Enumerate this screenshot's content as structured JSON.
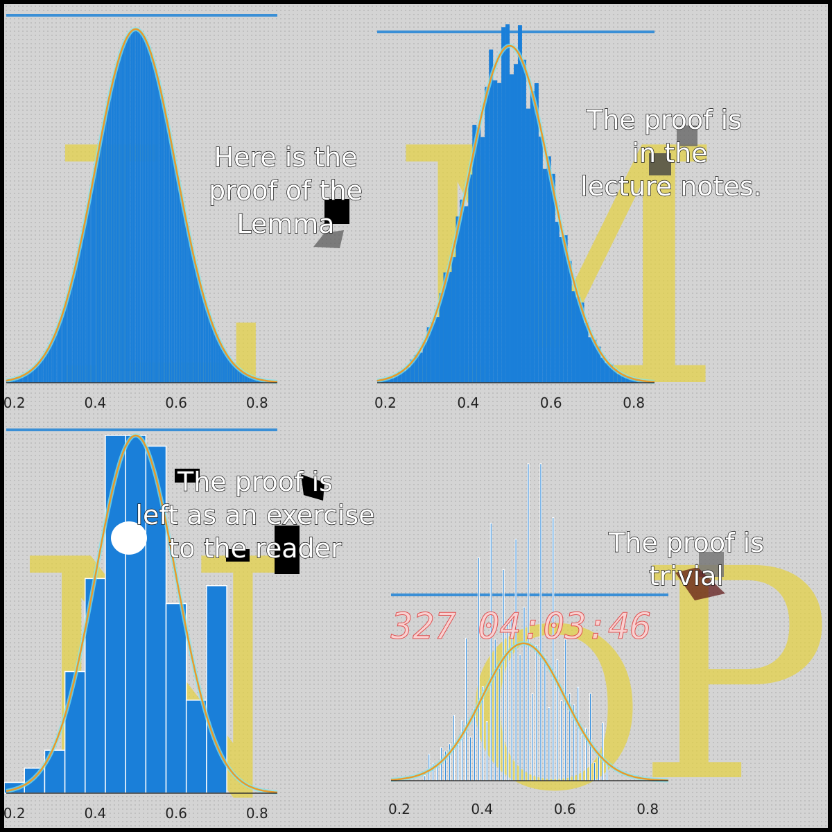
{
  "colors": {
    "bar": "#1a7fd9",
    "bar_outline": "#ffffff",
    "curve": "#e89a2a",
    "curve_glow": "#7fe7f0",
    "top_line": "#3a8fd6",
    "letters": "#e6d23a",
    "clock": "#ff6b6b"
  },
  "letters": [
    "L",
    "M",
    "N",
    "O",
    "P"
  ],
  "clock_text": "327 04:03:46",
  "chart_data": [
    {
      "type": "bar",
      "overlay": "normal-density",
      "x_ticks": [
        "0.2",
        "0.4",
        "0.6",
        "0.8"
      ],
      "xlim": [
        0.18,
        0.85
      ],
      "ylim": [
        0,
        1
      ],
      "mean": 0.5,
      "sd": 0.1,
      "bins": {
        "start": 0.18,
        "width": 0.004,
        "count": 165
      },
      "values_note": "",
      "annotation": [
        "Here is the",
        "proof of the",
        "Lemma"
      ]
    },
    {
      "type": "bar",
      "overlay": "normal-density",
      "x_ticks": [
        "0.2",
        "0.4",
        "0.6",
        "0.8"
      ],
      "xlim": [
        0.18,
        0.85
      ],
      "ylim": [
        0,
        1
      ],
      "mean": 0.5,
      "sd": 0.1,
      "bins": {
        "start": 0.18,
        "width": 0.01,
        "count": 67
      },
      "annotation": [
        "The proof is",
        "in the",
        "lecture notes."
      ]
    },
    {
      "type": "bar",
      "overlay": "normal-density",
      "x_ticks": [
        "0.2",
        "0.4",
        "0.6",
        "0.8"
      ],
      "xlim": [
        0.18,
        0.85
      ],
      "ylim": [
        0,
        1
      ],
      "mean": 0.5,
      "sd": 0.1,
      "categories": [
        0.2,
        0.25,
        0.3,
        0.35,
        0.4,
        0.45,
        0.5,
        0.55,
        0.6,
        0.65,
        0.7
      ],
      "values": [
        0.03,
        0.07,
        0.12,
        0.34,
        0.6,
        1.0,
        1.0,
        0.97,
        0.53,
        0.26,
        0.58
      ],
      "annotation": [
        "The proof is",
        "left as an exercise",
        "to the reader"
      ]
    },
    {
      "type": "bar",
      "overlay": "normal-density",
      "x_ticks": [
        "0.2",
        "0.4",
        "0.6",
        "0.8"
      ],
      "xlim": [
        0.18,
        0.85
      ],
      "ylim": [
        0,
        1
      ],
      "mean": 0.5,
      "sd": 0.1,
      "bins": {
        "start": 0.26,
        "width": 0.01,
        "count": 45
      },
      "annotation": [
        "The proof is",
        "trivial"
      ]
    }
  ]
}
